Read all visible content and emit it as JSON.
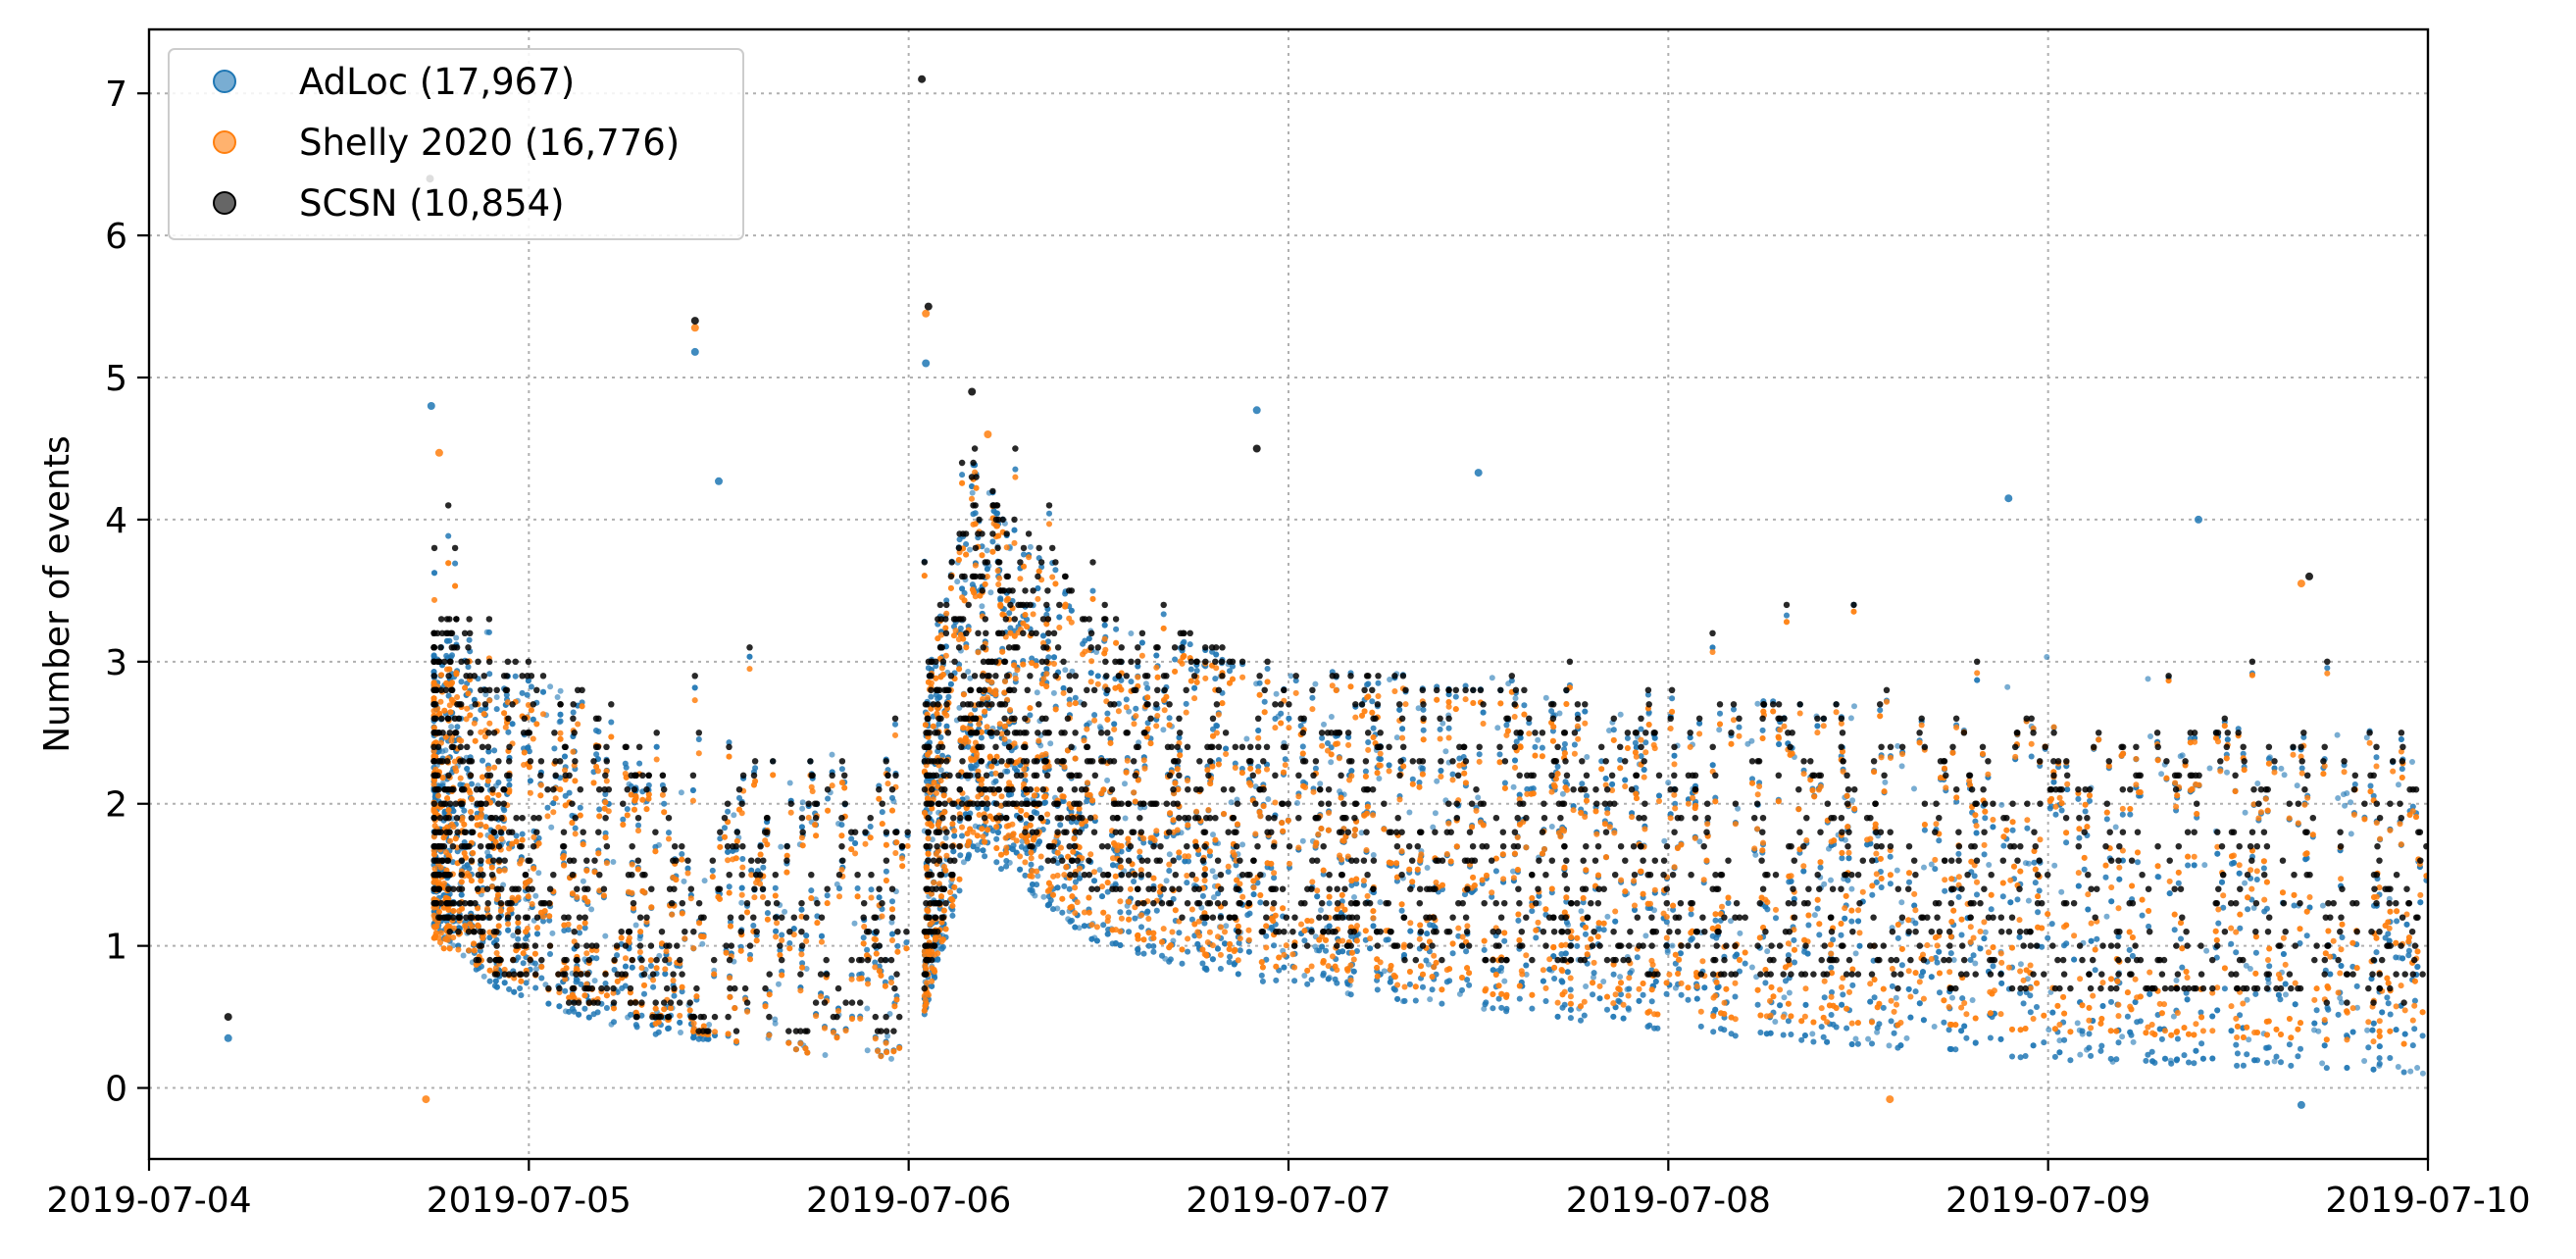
{
  "chart_data": {
    "type": "scatter",
    "title": "",
    "xlabel": "",
    "ylabel": "Number of events",
    "x_axis": {
      "type": "date",
      "range": [
        "2019-07-04",
        "2019-07-10"
      ],
      "ticks": [
        "2019-07-04",
        "2019-07-05",
        "2019-07-06",
        "2019-07-07",
        "2019-07-08",
        "2019-07-09",
        "2019-07-10"
      ]
    },
    "y_axis": {
      "range": [
        -0.5,
        7.45
      ],
      "ticks": [
        "0",
        "1",
        "2",
        "3",
        "4",
        "5",
        "6",
        "7"
      ]
    },
    "grid": "dotted",
    "legend_position": "top-left",
    "series": [
      {
        "name": "AdLoc (17,967)",
        "color": "#1f77b4",
        "opacity": 0.6,
        "points_shown": 17967,
        "envelope": [
          {
            "x": "2019-07-04 18:00",
            "lower": 1.1,
            "upper": 3.2
          },
          {
            "x": "2019-07-04 22:00",
            "lower": 0.7,
            "upper": 3.0
          },
          {
            "x": "2019-07-05 06:00",
            "lower": 0.4,
            "upper": 2.6
          },
          {
            "x": "2019-07-05 14:00",
            "lower": 0.3,
            "upper": 2.4
          },
          {
            "x": "2019-07-05 23:59",
            "lower": 0.1,
            "upper": 2.3
          },
          {
            "x": "2019-07-06 04:00",
            "lower": 1.7,
            "upper": 4.4
          },
          {
            "x": "2019-07-06 12:00",
            "lower": 1.0,
            "upper": 3.3
          },
          {
            "x": "2019-07-07 00:00",
            "lower": 0.7,
            "upper": 3.0
          },
          {
            "x": "2019-07-08 00:00",
            "lower": 0.4,
            "upper": 2.8
          },
          {
            "x": "2019-07-09 00:00",
            "lower": 0.2,
            "upper": 2.6
          },
          {
            "x": "2019-07-10 00:00",
            "lower": 0.1,
            "upper": 2.5
          }
        ],
        "highlights": [
          {
            "x": "2019-07-04 05:00",
            "y": 0.35
          },
          {
            "x": "2019-07-04 17:50",
            "y": 4.8
          },
          {
            "x": "2019-07-05 10:30",
            "y": 5.18
          },
          {
            "x": "2019-07-05 12:00",
            "y": 4.27
          },
          {
            "x": "2019-07-06 01:05",
            "y": 5.1
          },
          {
            "x": "2019-07-06 22:00",
            "y": 4.77
          },
          {
            "x": "2019-07-07 12:00",
            "y": 4.33
          },
          {
            "x": "2019-07-08 21:30",
            "y": 4.15
          },
          {
            "x": "2019-07-09 09:30",
            "y": 4.0
          },
          {
            "x": "2019-07-09 16:00",
            "y": -0.12
          }
        ]
      },
      {
        "name": "Shelly 2020 (16,776)",
        "color": "#ff7f0e",
        "opacity": 0.6,
        "points_shown": 16776,
        "envelope": [
          {
            "x": "2019-07-04 18:00",
            "lower": 1.0,
            "upper": 3.0
          },
          {
            "x": "2019-07-04 22:00",
            "lower": 0.8,
            "upper": 2.8
          },
          {
            "x": "2019-07-05 06:00",
            "lower": 0.5,
            "upper": 2.5
          },
          {
            "x": "2019-07-05 14:00",
            "lower": 0.3,
            "upper": 2.3
          },
          {
            "x": "2019-07-05 23:59",
            "lower": 0.1,
            "upper": 2.2
          },
          {
            "x": "2019-07-06 04:00",
            "lower": 1.8,
            "upper": 4.3
          },
          {
            "x": "2019-07-06 12:00",
            "lower": 1.1,
            "upper": 3.2
          },
          {
            "x": "2019-07-07 00:00",
            "lower": 0.8,
            "upper": 2.9
          },
          {
            "x": "2019-07-08 00:00",
            "lower": 0.5,
            "upper": 2.7
          },
          {
            "x": "2019-07-09 00:00",
            "lower": 0.4,
            "upper": 2.6
          },
          {
            "x": "2019-07-10 00:00",
            "lower": 0.3,
            "upper": 2.4
          }
        ],
        "highlights": [
          {
            "x": "2019-07-04 17:30",
            "y": -0.08
          },
          {
            "x": "2019-07-04 18:20",
            "y": 4.47
          },
          {
            "x": "2019-07-05 10:30",
            "y": 5.35
          },
          {
            "x": "2019-07-06 01:05",
            "y": 5.45
          },
          {
            "x": "2019-07-06 05:00",
            "y": 4.6
          },
          {
            "x": "2019-07-08 14:00",
            "y": -0.08
          },
          {
            "x": "2019-07-09 16:00",
            "y": 3.55
          }
        ]
      },
      {
        "name": "SCSN (10,854)",
        "color": "#000000",
        "opacity": 0.6,
        "points_shown": 10854,
        "envelope": [
          {
            "x": "2019-07-04 18:00",
            "lower": 1.2,
            "upper": 3.4
          },
          {
            "x": "2019-07-04 22:00",
            "lower": 0.8,
            "upper": 3.1
          },
          {
            "x": "2019-07-05 06:00",
            "lower": 0.5,
            "upper": 2.7
          },
          {
            "x": "2019-07-05 14:00",
            "lower": 0.4,
            "upper": 2.4
          },
          {
            "x": "2019-07-05 23:59",
            "lower": 0.3,
            "upper": 2.3
          },
          {
            "x": "2019-07-06 04:00",
            "lower": 2.0,
            "upper": 4.4
          },
          {
            "x": "2019-07-06 12:00",
            "lower": 1.4,
            "upper": 3.4
          },
          {
            "x": "2019-07-07 00:00",
            "lower": 1.0,
            "upper": 3.0
          },
          {
            "x": "2019-07-08 00:00",
            "lower": 0.8,
            "upper": 2.8
          },
          {
            "x": "2019-07-09 00:00",
            "lower": 0.7,
            "upper": 2.6
          },
          {
            "x": "2019-07-10 00:00",
            "lower": 0.6,
            "upper": 2.5
          }
        ],
        "highlights": [
          {
            "x": "2019-07-04 05:00",
            "y": 0.5
          },
          {
            "x": "2019-07-04 17:45",
            "y": 6.4
          },
          {
            "x": "2019-07-05 10:30",
            "y": 5.4
          },
          {
            "x": "2019-07-06 00:50",
            "y": 7.1
          },
          {
            "x": "2019-07-06 01:15",
            "y": 5.5
          },
          {
            "x": "2019-07-06 04:00",
            "y": 4.9
          },
          {
            "x": "2019-07-06 22:00",
            "y": 4.5
          },
          {
            "x": "2019-07-09 16:30",
            "y": 3.6
          }
        ]
      }
    ]
  }
}
